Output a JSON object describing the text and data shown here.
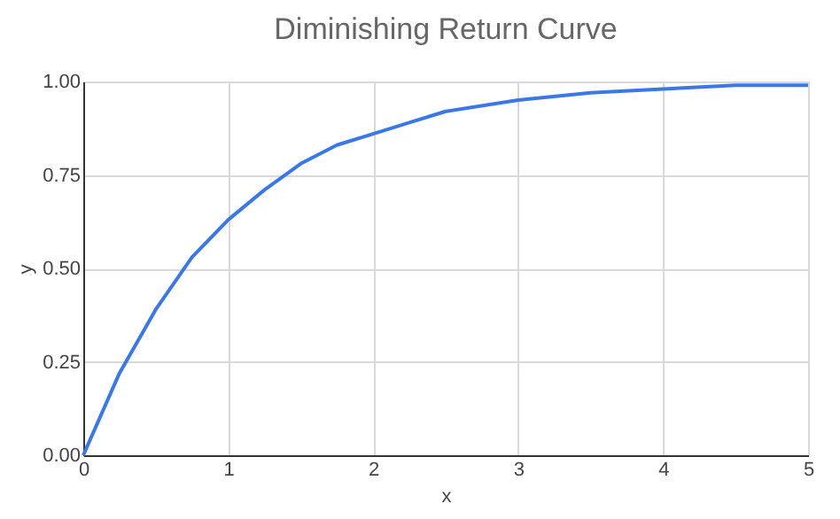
{
  "chart_data": {
    "type": "line",
    "title": "Diminishing Return Curve",
    "xlabel": "x",
    "ylabel": "y",
    "x": [
      0,
      0.25,
      0.5,
      0.75,
      1,
      1.25,
      1.5,
      1.75,
      2,
      2.25,
      2.5,
      3,
      3.5,
      4,
      4.5,
      5
    ],
    "series": [
      {
        "color": "#3b78e7",
        "values": [
          0,
          0.22,
          0.39,
          0.53,
          0.63,
          0.71,
          0.78,
          0.83,
          0.86,
          0.89,
          0.92,
          0.95,
          0.97,
          0.98,
          0.99,
          0.99
        ]
      }
    ],
    "xlim": [
      0,
      5
    ],
    "xticks": [
      0,
      1,
      2,
      3,
      4,
      5
    ],
    "ylim": [
      0,
      1
    ],
    "yticks": [
      {
        "value": 0,
        "label": "0.00"
      },
      {
        "value": 0.25,
        "label": "0.25"
      },
      {
        "value": 0.5,
        "label": "0.50"
      },
      {
        "value": 0.75,
        "label": "0.75"
      },
      {
        "value": 1,
        "label": "1.00"
      }
    ],
    "grid": true,
    "marker": "none",
    "line_style": "solid"
  }
}
